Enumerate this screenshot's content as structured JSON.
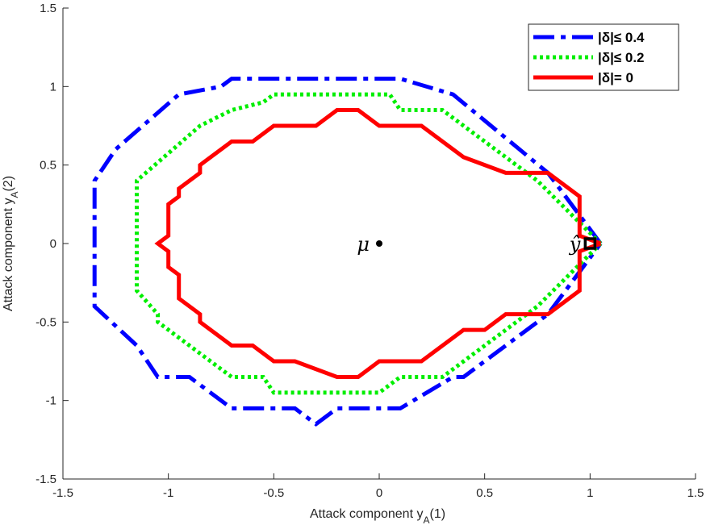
{
  "chart_data": {
    "type": "line",
    "title": "",
    "xlabel": "Attack component y_A(1)",
    "ylabel": "Attack component y_A(2)",
    "xlabel_parts": {
      "main": "Attack component y",
      "sub": "A",
      "tail": "(1)"
    },
    "ylabel_parts": {
      "main": "Attack component y",
      "sub": "A",
      "tail": "(2)"
    },
    "xlim": [
      -1.5,
      1.5
    ],
    "ylim": [
      -1.5,
      1.5
    ],
    "xticks": [
      -1.5,
      -1,
      -0.5,
      0,
      0.5,
      1,
      1.5
    ],
    "yticks": [
      -1.5,
      -1,
      -0.5,
      0,
      0.5,
      1,
      1.5
    ],
    "xtick_labels": [
      "-1.5",
      "-1",
      "-0.5",
      "0",
      "0.5",
      "1",
      "1.5"
    ],
    "ytick_labels": [
      "-1.5",
      "-1",
      "-0.5",
      "0",
      "0.5",
      "1",
      "1.5"
    ],
    "grid": false,
    "legend_position": "top-right",
    "series": [
      {
        "name": "|δ|≤ 0.4",
        "color": "#0000ff",
        "style": "dashdot",
        "points": [
          [
            1.05,
            0
          ],
          [
            0.8,
            0.45
          ],
          [
            0.35,
            0.95
          ],
          [
            0.1,
            1.05
          ],
          [
            -0.7,
            1.05
          ],
          [
            -0.75,
            1.0
          ],
          [
            -0.95,
            0.95
          ],
          [
            -1.25,
            0.6
          ],
          [
            -1.35,
            0.4
          ],
          [
            -1.35,
            -0.4
          ],
          [
            -1.15,
            -0.65
          ],
          [
            -1.05,
            -0.85
          ],
          [
            -0.9,
            -0.85
          ],
          [
            -0.7,
            -1.05
          ],
          [
            -0.4,
            -1.05
          ],
          [
            -0.3,
            -1.15
          ],
          [
            -0.2,
            -1.05
          ],
          [
            0.1,
            -1.05
          ],
          [
            0.35,
            -0.85
          ],
          [
            0.4,
            -0.85
          ],
          [
            0.8,
            -0.45
          ],
          [
            1.05,
            0
          ]
        ]
      },
      {
        "name": "|δ|≤ 0.2",
        "color": "#00ee00",
        "style": "dotted",
        "points": [
          [
            1.05,
            0
          ],
          [
            0.75,
            0.4
          ],
          [
            0.3,
            0.85
          ],
          [
            0.1,
            0.85
          ],
          [
            0.05,
            0.95
          ],
          [
            -0.5,
            0.95
          ],
          [
            -0.55,
            0.9
          ],
          [
            -0.7,
            0.85
          ],
          [
            -0.85,
            0.75
          ],
          [
            -1.15,
            0.4
          ],
          [
            -1.15,
            -0.3
          ],
          [
            -1.05,
            -0.45
          ],
          [
            -1.05,
            -0.5
          ],
          [
            -0.7,
            -0.85
          ],
          [
            -0.55,
            -0.85
          ],
          [
            -0.5,
            -0.95
          ],
          [
            0.0,
            -0.95
          ],
          [
            0.1,
            -0.85
          ],
          [
            0.3,
            -0.85
          ],
          [
            0.75,
            -0.4
          ],
          [
            1.05,
            0
          ]
        ]
      },
      {
        "name": "|δ|= 0",
        "color": "#ff0000",
        "style": "solid",
        "points": [
          [
            1.05,
            0
          ],
          [
            0.95,
            0.05
          ],
          [
            0.95,
            0.3
          ],
          [
            0.8,
            0.45
          ],
          [
            0.6,
            0.45
          ],
          [
            0.4,
            0.55
          ],
          [
            0.2,
            0.75
          ],
          [
            0.0,
            0.75
          ],
          [
            -0.1,
            0.85
          ],
          [
            -0.2,
            0.85
          ],
          [
            -0.3,
            0.75
          ],
          [
            -0.5,
            0.75
          ],
          [
            -0.6,
            0.65
          ],
          [
            -0.7,
            0.65
          ],
          [
            -0.85,
            0.5
          ],
          [
            -0.85,
            0.45
          ],
          [
            -0.95,
            0.35
          ],
          [
            -0.95,
            0.3
          ],
          [
            -1.0,
            0.25
          ],
          [
            -1.0,
            0.05
          ],
          [
            -1.05,
            0.0
          ],
          [
            -1.0,
            -0.05
          ],
          [
            -1.0,
            -0.15
          ],
          [
            -0.95,
            -0.2
          ],
          [
            -0.95,
            -0.35
          ],
          [
            -0.85,
            -0.45
          ],
          [
            -0.85,
            -0.5
          ],
          [
            -0.7,
            -0.65
          ],
          [
            -0.6,
            -0.65
          ],
          [
            -0.5,
            -0.75
          ],
          [
            -0.4,
            -0.75
          ],
          [
            -0.2,
            -0.85
          ],
          [
            -0.1,
            -0.85
          ],
          [
            0.0,
            -0.75
          ],
          [
            0.2,
            -0.75
          ],
          [
            0.4,
            -0.55
          ],
          [
            0.5,
            -0.55
          ],
          [
            0.6,
            -0.45
          ],
          [
            0.8,
            -0.45
          ],
          [
            0.95,
            -0.3
          ],
          [
            0.95,
            -0.05
          ],
          [
            1.05,
            0
          ]
        ]
      }
    ],
    "annotations": [
      {
        "id": "mu",
        "label": "μ",
        "x": 0,
        "y": 0,
        "marker": "dot"
      },
      {
        "id": "yhat",
        "label": "ŷ",
        "x": 1.0,
        "y": 0,
        "marker": "square"
      }
    ]
  }
}
